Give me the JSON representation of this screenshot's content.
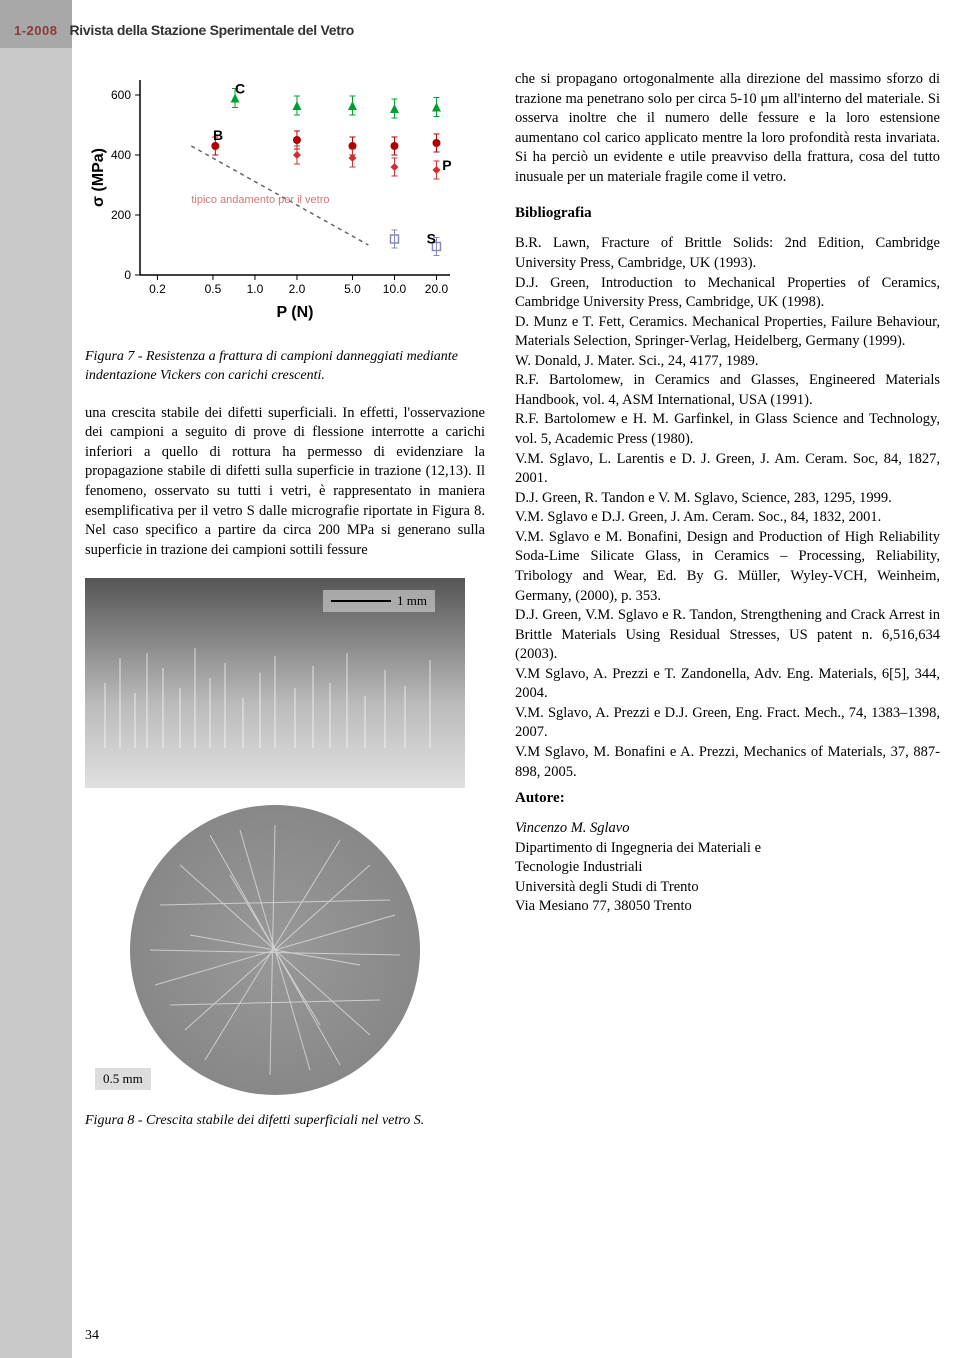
{
  "header": {
    "issue": "1-2008",
    "journal": "Rivista della Stazione Sperimentale del Vetro"
  },
  "chart": {
    "type": "scatter",
    "xlabel": "P (N)",
    "ylabel": "σ (MPa)",
    "xscale": "log",
    "xlim": [
      0.15,
      25
    ],
    "ylim": [
      0,
      650
    ],
    "xticks": [
      0.2,
      0.5,
      1.0,
      2.0,
      5.0,
      10.0,
      20.0
    ],
    "xtick_labels": [
      "0.2",
      "0.5",
      "1.0",
      "2.0",
      "5.0",
      "10.0",
      "20.0"
    ],
    "yticks": [
      0,
      200,
      400,
      600
    ],
    "ytick_labels": [
      "0",
      "200",
      "400",
      "600"
    ],
    "background_color": "#ffffff",
    "axis_color": "#000000",
    "label_fontsize": 14,
    "tick_fontsize": 12,
    "annotation_text": "tipico andamento per il vetro",
    "annotation_color": "#d07878",
    "trend_line": {
      "points": [
        [
          0.35,
          430
        ],
        [
          6.5,
          100
        ]
      ],
      "color": "#666666",
      "dash": "4,4",
      "width": 1.5
    },
    "series": [
      {
        "name": "C",
        "label": "C",
        "label_pos": [
          0.72,
          605
        ],
        "color": "#00a030",
        "marker": "triangle",
        "marker_size": 9,
        "points": [
          [
            0.72,
            590
          ],
          [
            2.0,
            565
          ],
          [
            5.0,
            565
          ],
          [
            10.0,
            555
          ],
          [
            20.0,
            560
          ]
        ]
      },
      {
        "name": "B",
        "label": "B",
        "label_pos": [
          0.5,
          450
        ],
        "color": "#b00000",
        "marker": "circle",
        "marker_size": 8,
        "points": [
          [
            0.52,
            430
          ],
          [
            2.0,
            450
          ],
          [
            5.0,
            430
          ],
          [
            10.0,
            430
          ],
          [
            20.0,
            440
          ]
        ]
      },
      {
        "name": "P",
        "label": "P",
        "label_pos": [
          22,
          350
        ],
        "color": "#d03030",
        "marker": "diamond",
        "marker_size": 8,
        "points": [
          [
            2.0,
            400
          ],
          [
            5.0,
            390
          ],
          [
            10.0,
            360
          ],
          [
            20.0,
            350
          ]
        ]
      },
      {
        "name": "S",
        "label": "S",
        "label_pos": [
          17,
          105
        ],
        "color": "#8888c0",
        "marker": "square-open",
        "marker_size": 8,
        "points": [
          [
            10.0,
            120
          ],
          [
            20.0,
            95
          ]
        ]
      }
    ]
  },
  "fig7_caption": "Figura 7 - Resistenza a frattura di campioni danneggiati mediante indentazione Vickers con carichi crescenti.",
  "left_body": "una crescita stabile dei difetti superficiali. In effetti, l'osservazione dei campioni a seguito di prove di flessione interrotte a carichi inferiori a quello di rottura ha permesso di evidenziare la propagazione stabile di difetti sulla superficie in trazione (12,13). Il fenomeno, osservato su tutti i vetri, è rappresentato in maniera esemplificativa per il vetro S dalle micrografie riportate in Figura 8. Nel caso specifico a partire da circa 200 MPa si generano sulla superficie in trazione dei campioni sottili fessure",
  "scale1": "1 mm",
  "scale2": "0.5 mm",
  "fig8_caption": "Figura 8 - Crescita stabile dei difetti superficiali nel vetro S.",
  "right_top": "che si propagano ortogonalmente alla direzione del massimo sforzo di trazione ma penetrano solo per circa 5-10 μm all'interno del materiale. Si osserva inoltre che il numero delle fessure e la loro estensione aumentano col carico applicato mentre la loro profondità resta invariata. Si ha perciò un evidente e utile preavviso della frattura, cosa del tutto inusuale per un materiale fragile come il vetro.",
  "biblio_title": "Bibliografia",
  "references": [
    "B.R. Lawn, Fracture of Brittle Solids: 2nd Edition, Cambridge University Press, Cambridge, UK (1993).",
    "D.J. Green, Introduction to Mechanical Properties of Ceramics, Cambridge University Press, Cambridge, UK (1998).",
    "D. Munz e T. Fett, Ceramics. Mechanical Properties, Failure Behaviour, Materials Selection, Springer-Verlag, Heidelberg, Germany (1999).",
    "W. Donald, J. Mater. Sci., 24, 4177, 1989.",
    "R.F. Bartolomew, in Ceramics and Glasses, Engineered Materials Handbook, vol. 4, ASM International, USA (1991).",
    "R.F. Bartolomew e H. M. Garfinkel, in Glass Science and Technology, vol. 5, Academic Press (1980).",
    "V.M. Sglavo, L. Larentis e D. J. Green, J. Am. Ceram. Soc, 84, 1827, 2001.",
    "D.J. Green, R. Tandon e V. M. Sglavo, Science, 283, 1295, 1999.",
    "V.M. Sglavo e D.J. Green, J. Am. Ceram. Soc., 84, 1832, 2001.",
    "V.M. Sglavo e M. Bonafini, Design and Production of High Reliability Soda-Lime Silicate Glass, in Ceramics – Processing, Reliability, Tribology and Wear, Ed. By G. Müller, Wyley-VCH, Weinheim, Germany, (2000), p. 353.",
    "D.J. Green, V.M. Sglavo e R. Tandon, Strengthening and Crack Arrest in Brittle Materials Using Residual Stresses, US patent n. 6,516,634 (2003).",
    "V.M Sglavo, A. Prezzi e T. Zandonella, Adv. Eng. Materials, 6[5], 344, 2004.",
    "V.M. Sglavo, A. Prezzi e D.J. Green, Eng. Fract. Mech., 74, 1383–1398, 2007.",
    "V.M Sglavo, M. Bonafini e A. Prezzi, Mechanics of Materials, 37, 887-898, 2005."
  ],
  "autore_title": "Autore:",
  "author": {
    "name": "Vincenzo M. Sglavo",
    "line1": "Dipartimento di Ingegneria dei Materiali e",
    "line2": "Tecnologie Industriali",
    "line3": "Università degli Studi di Trento",
    "line4": "Via Mesiano 77, 38050 Trento"
  },
  "page_number": "34"
}
